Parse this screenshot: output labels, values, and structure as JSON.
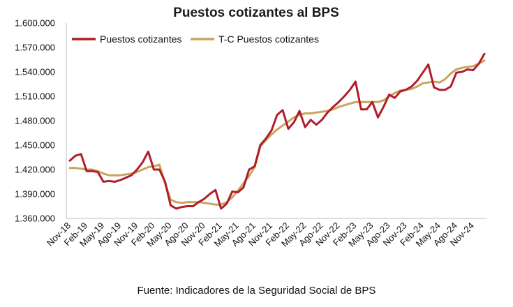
{
  "chart_data": {
    "type": "line",
    "title": "Puestos cotizantes al BPS",
    "source": "Fuente: Indicadores de la Seguridad Social de BPS",
    "ylim": [
      1360000,
      1600000
    ],
    "y_ticks": [
      "1.360.000",
      "1.390.000",
      "1.420.000",
      "1.450.000",
      "1.480.000",
      "1.510.000",
      "1.540.000",
      "1.570.000",
      "1.600.000"
    ],
    "y_tick_values": [
      1360000,
      1390000,
      1420000,
      1450000,
      1480000,
      1510000,
      1540000,
      1570000,
      1600000
    ],
    "x_ticks": [
      "Nov-18",
      "Feb-19",
      "May-19",
      "Ago-19",
      "Nov-19",
      "Feb-20",
      "May-20",
      "Ago-20",
      "Nov-20",
      "Feb-21",
      "May-21",
      "Ago-21",
      "Nov-21",
      "Feb-22",
      "May-22",
      "Ago-22",
      "Nov-22",
      "Feb-23",
      "May-23",
      "Ago-23",
      "Nov-23",
      "Feb-24",
      "May-24",
      "Ago-24",
      "Nov-24"
    ],
    "legend_position": "top-left",
    "grid": false,
    "series": [
      {
        "name": "Puestos cotizantes",
        "color": "#b01e2a",
        "values": [
          1431000,
          1437000,
          1439000,
          1418000,
          1418000,
          1417000,
          1405000,
          1406000,
          1405000,
          1407000,
          1410000,
          1413000,
          1420000,
          1429000,
          1442000,
          1420000,
          1420000,
          1405000,
          1376000,
          1372000,
          1374000,
          1375000,
          1375000,
          1380000,
          1384000,
          1390000,
          1395000,
          1372000,
          1378000,
          1393000,
          1392000,
          1398000,
          1420000,
          1424000,
          1450000,
          1458000,
          1468000,
          1487000,
          1493000,
          1470000,
          1478000,
          1492000,
          1472000,
          1481000,
          1475000,
          1481000,
          1490000,
          1497000,
          1503000,
          1510000,
          1518000,
          1528000,
          1494000,
          1494000,
          1503000,
          1484000,
          1497000,
          1512000,
          1508000,
          1516000,
          1518000,
          1522000,
          1529000,
          1539000,
          1549000,
          1521000,
          1518000,
          1518000,
          1522000,
          1539000,
          1540000,
          1543000,
          1542000,
          1550000,
          1562000
        ]
      },
      {
        "name": "T-C Puestos cotizantes",
        "color": "#c9a45c",
        "values": [
          1422000,
          1422000,
          1421000,
          1420000,
          1420000,
          1418000,
          1415000,
          1413000,
          1413000,
          1413000,
          1414000,
          1415000,
          1417000,
          1420000,
          1423000,
          1424000,
          1426000,
          1403000,
          1383000,
          1380000,
          1379000,
          1380000,
          1380000,
          1380000,
          1379000,
          1378000,
          1377000,
          1377000,
          1380000,
          1386000,
          1394000,
          1403000,
          1412000,
          1423000,
          1448000,
          1456000,
          1463000,
          1469000,
          1474000,
          1479000,
          1484000,
          1487000,
          1489000,
          1489000,
          1490000,
          1491000,
          1492000,
          1494000,
          1497000,
          1499000,
          1501000,
          1503000,
          1503000,
          1503000,
          1503000,
          1503000,
          1505000,
          1510000,
          1514000,
          1517000,
          1518000,
          1519000,
          1522000,
          1526000,
          1527000,
          1528000,
          1527000,
          1531000,
          1538000,
          1543000,
          1545000,
          1546000,
          1547000,
          1550000,
          1554000
        ]
      }
    ]
  }
}
